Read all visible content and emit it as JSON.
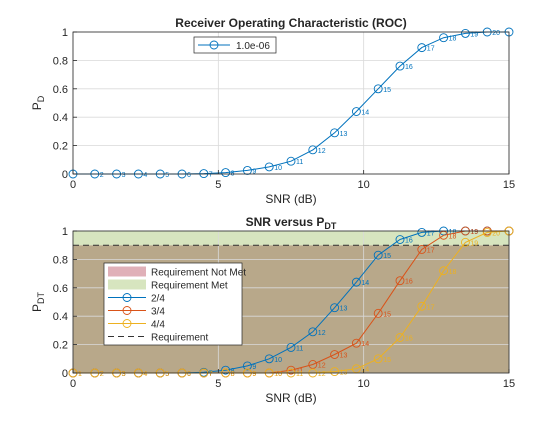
{
  "chart_data": [
    {
      "type": "line",
      "title": "Receiver Operating Characteristic (ROC)",
      "xlabel": "SNR (dB)",
      "ylabel": "P",
      "ylabel_sub": "D",
      "xlim": [
        0,
        15
      ],
      "ylim": [
        0,
        1
      ],
      "xticks": [
        "0",
        "5",
        "10",
        "15"
      ],
      "yticks": [
        "0",
        "0.2",
        "0.4",
        "0.6",
        "0.8",
        "1"
      ],
      "grid": true,
      "legend_position": "top-center",
      "color": "#0072BD",
      "series": [
        {
          "name": "1.0e-06",
          "x": [
            0,
            0.75,
            1.5,
            2.25,
            3,
            3.75,
            4.5,
            5.25,
            6,
            6.75,
            7.5,
            8.25,
            9,
            9.75,
            10.5,
            11.25,
            12,
            12.75,
            13.5,
            14.25,
            15
          ],
          "y": [
            0,
            0,
            0,
            0,
            0,
            0,
            0.003,
            0.01,
            0.025,
            0.05,
            0.09,
            0.17,
            0.29,
            0.44,
            0.6,
            0.76,
            0.89,
            0.96,
            0.99,
            1.0,
            1.0
          ],
          "labels": [
            "",
            "2",
            "3",
            "4",
            "5",
            "6",
            "7",
            "8",
            "9",
            "10",
            "11",
            "12",
            "13",
            "14",
            "15",
            "16",
            "17",
            "18",
            "19",
            "20",
            ""
          ]
        }
      ]
    },
    {
      "type": "line",
      "title": "SNR  versus  P",
      "title_sub": "DT",
      "xlabel": "SNR (dB)",
      "ylabel": "P",
      "ylabel_sub": "DT",
      "xlim": [
        0,
        15
      ],
      "ylim": [
        0,
        1
      ],
      "xticks": [
        "0",
        "5",
        "10",
        "15"
      ],
      "yticks": [
        "0",
        "0.2",
        "0.4",
        "0.6",
        "0.8",
        "1"
      ],
      "grid": true,
      "legend_position": "middle-left",
      "requirement": 0.9,
      "regions": [
        {
          "name": "Requirement Not Met",
          "from": 0,
          "to": 0.9,
          "color": "#b8a88a",
          "swatch": "#e0b0b8"
        },
        {
          "name": "Requirement Met",
          "from": 0.9,
          "to": 1.0,
          "color": "#d7e5bf",
          "swatch": "#d7e5bf"
        }
      ],
      "series": [
        {
          "name": "2/4",
          "color": "#0072BD",
          "x": [
            0,
            0.75,
            1.5,
            2.25,
            3,
            3.75,
            4.5,
            5.25,
            6,
            6.75,
            7.5,
            8.25,
            9,
            9.75,
            10.5,
            11.25,
            12,
            12.75,
            13.5,
            14.25,
            15
          ],
          "y": [
            0,
            0,
            0,
            0,
            0,
            0,
            0.005,
            0.02,
            0.05,
            0.1,
            0.18,
            0.29,
            0.46,
            0.64,
            0.83,
            0.94,
            0.99,
            1.0,
            1.0,
            1.0,
            1.0
          ],
          "labels": [
            "1",
            "2",
            "3",
            "4",
            "5",
            "6",
            "7",
            "8",
            "9",
            "10",
            "11",
            "12",
            "13",
            "14",
            "15",
            "16",
            "17",
            "18",
            "19",
            "",
            ""
          ]
        },
        {
          "name": "3/4",
          "color": "#D95319",
          "x": [
            0,
            0.75,
            1.5,
            2.25,
            3,
            3.75,
            4.5,
            5.25,
            6,
            6.75,
            7.5,
            8.25,
            9,
            9.75,
            10.5,
            11.25,
            12,
            12.75,
            13.5,
            14.25,
            15
          ],
          "y": [
            0,
            0,
            0,
            0,
            0,
            0,
            0,
            0,
            0,
            0,
            0.02,
            0.06,
            0.13,
            0.21,
            0.42,
            0.65,
            0.87,
            0.97,
            1.0,
            1.0,
            1.0
          ],
          "labels": [
            "1",
            "2",
            "3",
            "4",
            "5",
            "6",
            "7",
            "8",
            "9",
            "10",
            "11",
            "12",
            "13",
            "14",
            "15",
            "16",
            "17",
            "18",
            "19",
            "",
            ""
          ]
        },
        {
          "name": "4/4",
          "color": "#EDB120",
          "x": [
            0,
            0.75,
            1.5,
            2.25,
            3,
            3.75,
            4.5,
            5.25,
            6,
            6.75,
            7.5,
            8.25,
            9,
            9.75,
            10.5,
            11.25,
            12,
            12.75,
            13.5,
            14.25,
            15
          ],
          "y": [
            0,
            0,
            0,
            0,
            0,
            0,
            0,
            0,
            0,
            0,
            0,
            0,
            0.01,
            0.03,
            0.1,
            0.25,
            0.47,
            0.72,
            0.92,
            0.99,
            1.0
          ],
          "labels": [
            "1",
            "2",
            "3",
            "4",
            "5",
            "6",
            "7",
            "8",
            "9",
            "10",
            "11",
            "12",
            "13",
            "14",
            "15",
            "16",
            "17",
            "18",
            "19",
            "20",
            ""
          ]
        }
      ],
      "legend_extra": [
        {
          "name": "Requirement",
          "style": "dashed",
          "color": "#333333"
        }
      ]
    }
  ]
}
